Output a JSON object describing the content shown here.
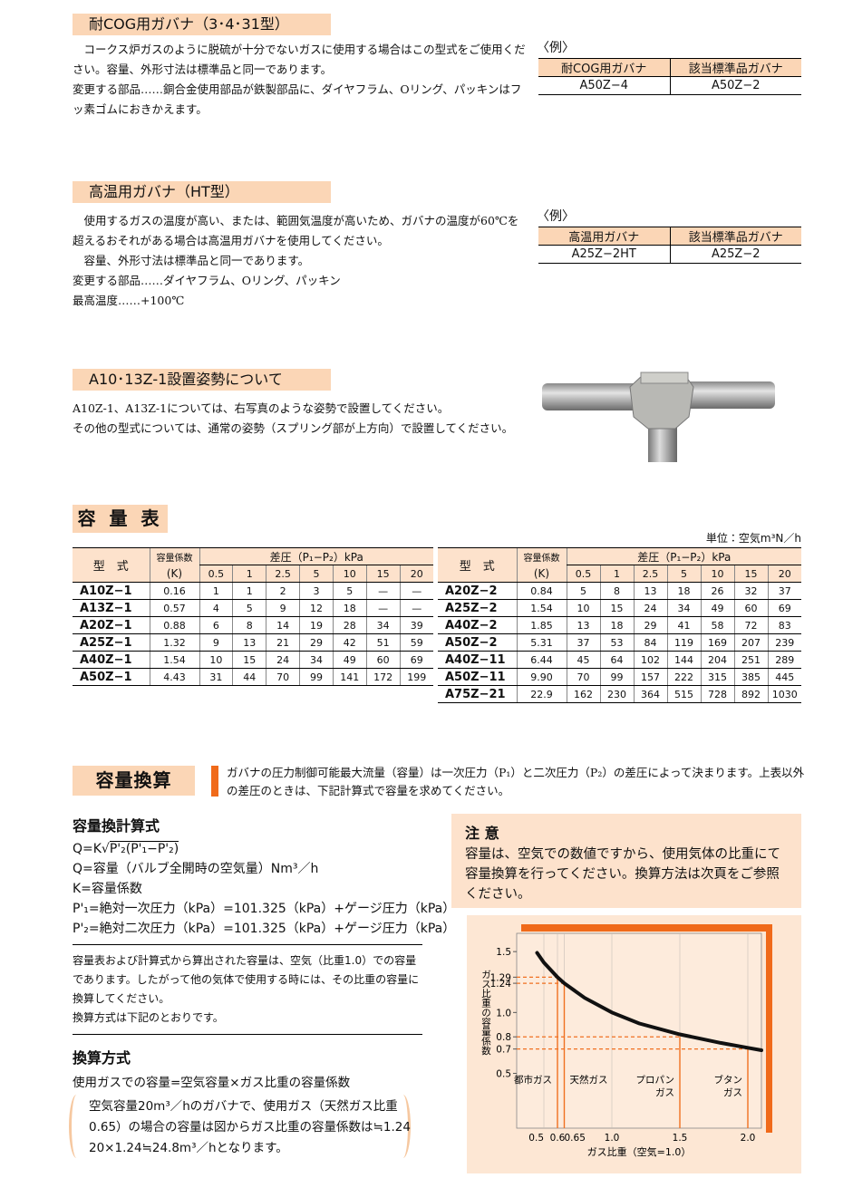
{
  "sections": [
    {
      "heading": "耐COG用ガバナ（3･4･31型）",
      "paragraphs": [
        "コークス炉ガスのように脱硫が十分でないガスに使用する場合はこの型式をご使用ください。容量、外形寸法は標準品と同一であります。",
        "変更する部品……銅合金使用部品が鉄製部品に、ダイヤフラム、Oリング、パッキンはフッ素ゴムにおきかえます。"
      ],
      "example": {
        "label": "〈例〉",
        "headers": [
          "耐COG用ガバナ",
          "該当標準品ガバナ"
        ],
        "row": [
          "A50Z−4",
          "A50Z−2"
        ]
      }
    },
    {
      "heading": "高温用ガバナ（HT型）",
      "paragraphs": [
        "使用するガスの温度が高い、または、範囲気温度が高いため、ガバナの温度が60℃を超えるおそれがある場合は高温用ガバナを使用してください。",
        "容量、外形寸法は標準品と同一であります。",
        "変更する部品……ダイヤフラム、Oリング、パッキン",
        "最高温度……+100℃"
      ],
      "example": {
        "label": "〈例〉",
        "headers": [
          "高温用ガバナ",
          "該当標準品ガバナ"
        ],
        "row": [
          "A25Z−2HT",
          "A25Z−2"
        ]
      }
    }
  ],
  "installation": {
    "heading": "A10･13Z-1設置姿勢について",
    "paragraphs": [
      "A10Z-1、A13Z-1については、右写真のような姿勢で設置してください。",
      "その他の型式については、通常の姿勢（スプリング部が上方向）で設置してください。"
    ]
  },
  "capacity_table": {
    "title": "容 量 表",
    "unit": "単位：空気m³N／h",
    "model_header": "型　式",
    "k_header": [
      "容量係数",
      "(K)"
    ],
    "pressure_header": "差圧（P₁−P₂）kPa",
    "pressures": [
      "0.5",
      "1",
      "2.5",
      "5",
      "10",
      "15",
      "20"
    ],
    "left_rows": [
      [
        "A10Z−1",
        "0.16",
        "1",
        "1",
        "2",
        "3",
        "5",
        "—",
        "—"
      ],
      [
        "A13Z−1",
        "0.57",
        "4",
        "5",
        "9",
        "12",
        "18",
        "—",
        "—"
      ],
      [
        "A20Z−1",
        "0.88",
        "6",
        "8",
        "14",
        "19",
        "28",
        "34",
        "39"
      ],
      [
        "A25Z−1",
        "1.32",
        "9",
        "13",
        "21",
        "29",
        "42",
        "51",
        "59"
      ],
      [
        "A40Z−1",
        "1.54",
        "10",
        "15",
        "24",
        "34",
        "49",
        "60",
        "69"
      ],
      [
        "A50Z−1",
        "4.43",
        "31",
        "44",
        "70",
        "99",
        "141",
        "172",
        "199"
      ]
    ],
    "right_rows": [
      [
        "A20Z−2",
        "0.84",
        "5",
        "8",
        "13",
        "18",
        "26",
        "32",
        "37"
      ],
      [
        "A25Z−2",
        "1.54",
        "10",
        "15",
        "24",
        "34",
        "49",
        "60",
        "69"
      ],
      [
        "A40Z−2",
        "1.85",
        "13",
        "18",
        "29",
        "41",
        "58",
        "72",
        "83"
      ],
      [
        "A50Z−2",
        "5.31",
        "37",
        "53",
        "84",
        "119",
        "169",
        "207",
        "239"
      ],
      [
        "A40Z−11",
        "6.44",
        "45",
        "64",
        "102",
        "144",
        "204",
        "251",
        "289"
      ],
      [
        "A50Z−11",
        "9.90",
        "70",
        "99",
        "157",
        "222",
        "315",
        "385",
        "445"
      ],
      [
        "A75Z−21",
        "22.9",
        "162",
        "230",
        "364",
        "515",
        "728",
        "892",
        "1030"
      ]
    ]
  },
  "conversion": {
    "title": "容量換算",
    "intro": "ガバナの圧力制御可能最大流量（容量）は一次圧力（P₁）と二次圧力（P₂）の差圧によって決まります。上表以外の差圧のときは、下記計算式で容量を求めてください。",
    "formula_title": "容量換計算式",
    "formula": {
      "prefix": "Q=K√",
      "radicand": "P'₂(P'₁−P'₂)"
    },
    "definitions": [
      "Q=容量（バルブ全開時の空気量）Nm³／h",
      "K=容量係数",
      "P'₁=絶対一次圧力（kPa）=101.325（kPa）+ゲージ圧力（kPa）",
      "P'₂=絶対二次圧力（kPa）=101.325（kPa）+ゲージ圧力（kPa）"
    ],
    "note_lines": [
      "容量表および計算式から算出された容量は、空気（比重1.0）での容量であります。したがって他の気体で使用する時には、その比重の容量に換算してください。",
      "換算方式は下記のとおりです。"
    ],
    "method_title": "換算方式",
    "method": "使用ガスでの容量=空気容量×ガス比重の容量係数",
    "example_lines": [
      "空気容量20m³／hのガバナで、使用ガス（天然ガス比重",
      "0.65）の場合の容量は図からガス比重の容量係数は≒1.24",
      "20×1.24≒24.8m³／hとなります。"
    ]
  },
  "caution": {
    "title": "注 意",
    "text": "容量は、空気での数値ですから、使用気体の比重にて容量換算を行ってください。換算方法は次頁をご参照ください。"
  },
  "chart_data": {
    "type": "line",
    "x_label": "ガス比重（空気=1.0）",
    "y_label": "ガス比重の容量係数",
    "x": [
      0.45,
      0.5,
      0.6,
      0.65,
      0.8,
      1.0,
      1.2,
      1.5,
      1.8,
      2.0,
      2.1
    ],
    "values": [
      1.49,
      1.41,
      1.29,
      1.24,
      1.12,
      1.0,
      0.91,
      0.82,
      0.75,
      0.71,
      0.69
    ],
    "color": "#111111",
    "xlim": [
      0.3,
      2.1
    ],
    "ylim": [
      0.05,
      1.65
    ],
    "xticks": [
      0.5,
      0.6,
      0.65,
      {
        "value": 1,
        "label": "1.0"
      },
      1.5,
      {
        "value": 2,
        "label": "2.0"
      }
    ],
    "yticks": [
      0.5,
      0.7,
      0.8,
      {
        "value": 1,
        "label": "1.0"
      },
      1.24,
      1.29,
      1.5
    ],
    "grid": true,
    "marker_color": "#f07020",
    "markers": [
      {
        "label": [
          "都市ガス"
        ],
        "x": 0.6,
        "y": 1.29
      },
      {
        "label": [
          "天然ガス"
        ],
        "x": 0.65,
        "y": 1.24
      },
      {
        "label": [
          "プロパン",
          "ガス"
        ],
        "x": 1.5,
        "y": 0.8
      },
      {
        "label": [
          "ブタン",
          "ガス"
        ],
        "x": 2,
        "y": 0.7
      }
    ]
  }
}
